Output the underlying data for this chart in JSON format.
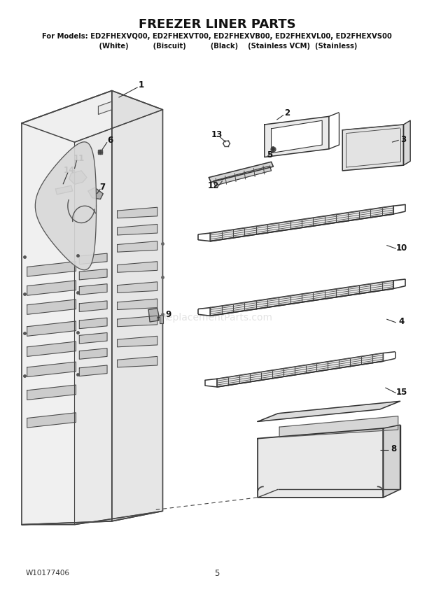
{
  "title": "FREEZER LINER PARTS",
  "subtitle1": "For Models: ED2FHEXVQ00, ED2FHEXVT00, ED2FHEXVB00, ED2FHEXVL00, ED2FHEXVS00",
  "subtitle2": "         (White)          (Biscuit)          (Black)    (Stainless VCM)  (Stainless)",
  "footer_left": "W10177406",
  "footer_center": "5",
  "bg_color": "#ffffff",
  "watermark": "ReplacementParts.com"
}
